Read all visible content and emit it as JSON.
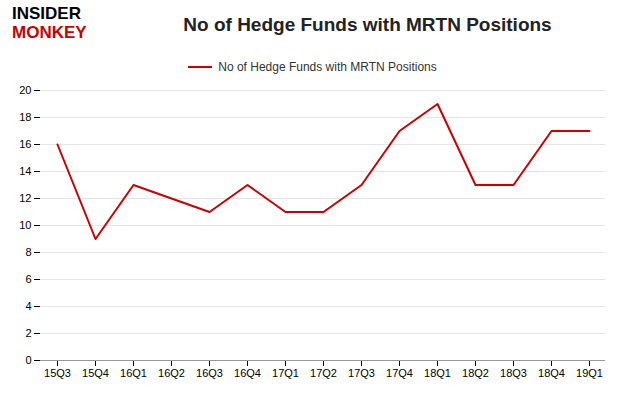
{
  "chart_data": {
    "type": "line",
    "title": "No of Hedge Funds with MRTN Positions",
    "annotations": [
      {
        "text": "INSIDER",
        "color": "#000000"
      },
      {
        "text": "MONKEY",
        "color": "#cc0000"
      }
    ],
    "categories": [
      "15Q3",
      "15Q4",
      "16Q1",
      "16Q2",
      "16Q3",
      "16Q4",
      "17Q1",
      "17Q2",
      "17Q3",
      "17Q4",
      "18Q1",
      "18Q2",
      "18Q3",
      "18Q4",
      "19Q1"
    ],
    "series": [
      {
        "name": "No of Hedge Funds with MRTN Positions",
        "color": "#cc0000",
        "values": [
          16,
          9,
          13,
          12,
          11,
          13,
          11,
          11,
          13,
          17,
          19,
          13,
          13,
          17,
          17
        ]
      }
    ],
    "ylim": [
      0,
      20
    ],
    "yticks": [
      0,
      2,
      4,
      6,
      8,
      10,
      12,
      14,
      16,
      18,
      20
    ],
    "grid": true,
    "legend": "top"
  }
}
